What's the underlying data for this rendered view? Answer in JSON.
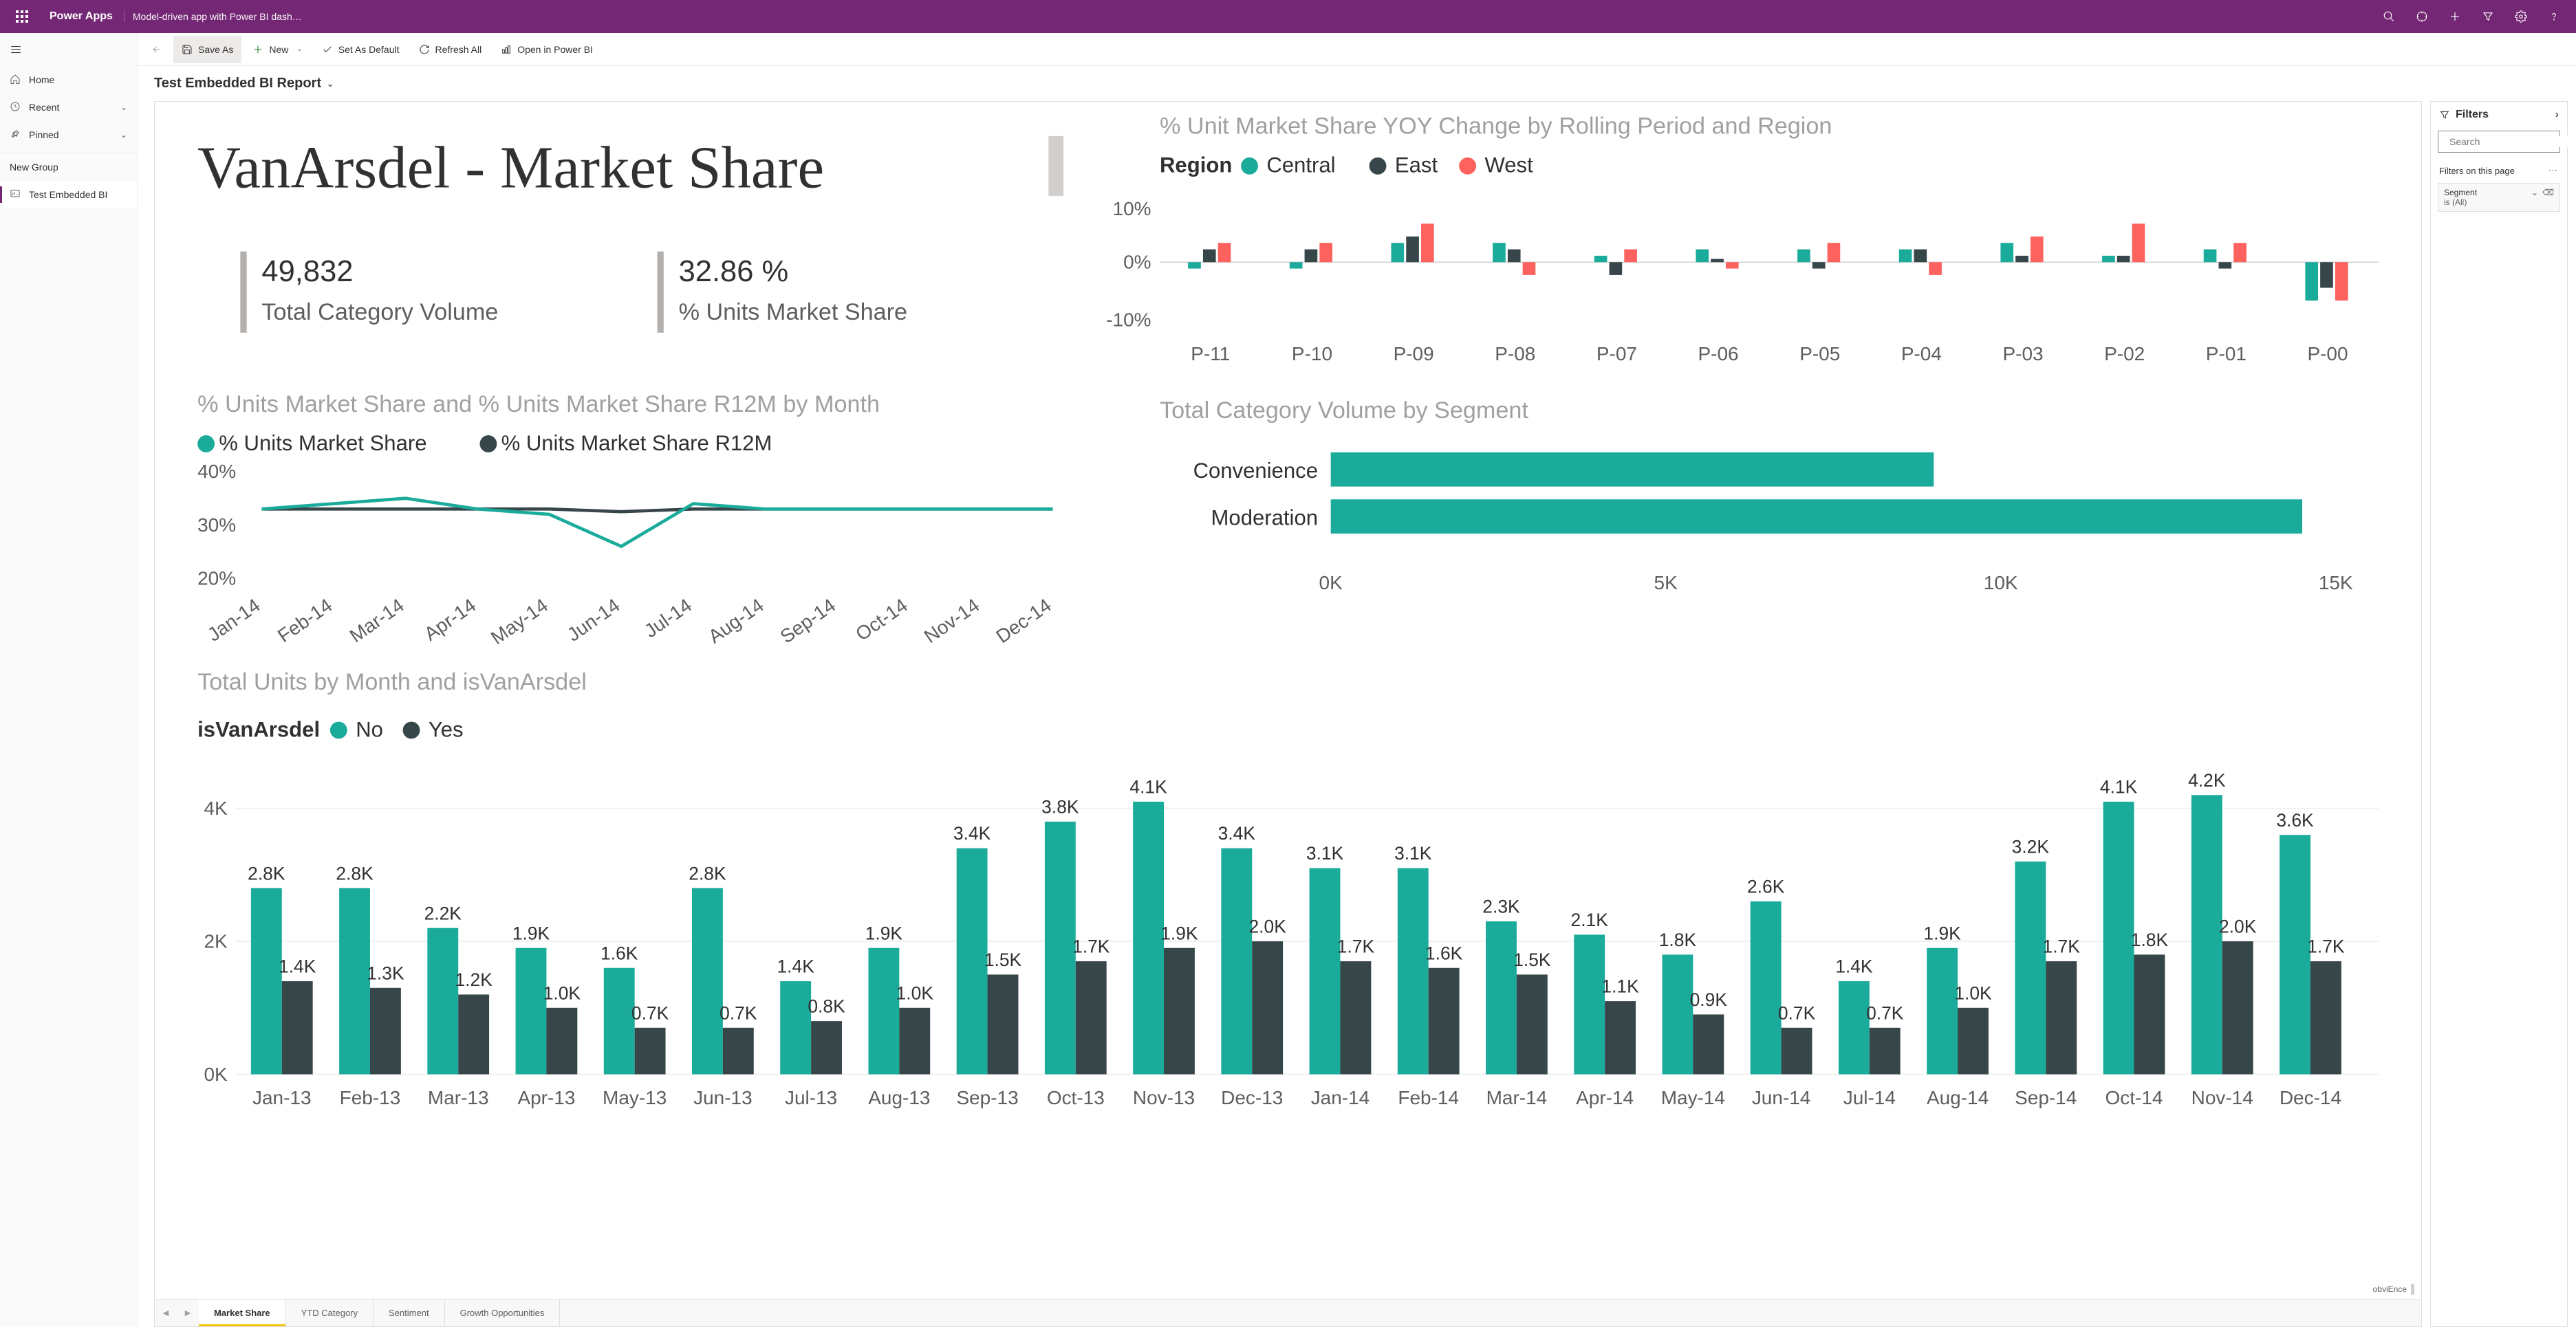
{
  "topnav": {
    "brand": "Power Apps",
    "breadcrumb": "Model-driven app with Power BI dash…"
  },
  "sidebar": {
    "items": [
      {
        "label": "Home",
        "icon": "home"
      },
      {
        "label": "Recent",
        "icon": "clock",
        "chevron": true
      },
      {
        "label": "Pinned",
        "icon": "pin",
        "chevron": true
      }
    ],
    "group": "New Group",
    "active_item": "Test Embedded BI"
  },
  "cmdbar": {
    "save_as": "Save As",
    "new": "New",
    "set_default": "Set As Default",
    "refresh_all": "Refresh All",
    "open_pbi": "Open in Power BI"
  },
  "page_title": "Test Embedded BI Report",
  "filters": {
    "title": "Filters",
    "search_placeholder": "Search",
    "section": "Filters on this page",
    "card_field": "Segment",
    "card_value": "is (All)"
  },
  "tabs": [
    "Market Share",
    "YTD Category",
    "Sentiment",
    "Growth Opportunities"
  ],
  "canvas": {
    "title": "VanArsdel - Market Share",
    "kpi1_val": "49,832",
    "kpi1_lbl": "Total Category Volume",
    "kpi2_val": "32.86 %",
    "kpi2_lbl": "% Units Market Share",
    "yoy": {
      "title": "% Unit Market Share YOY Change by Rolling Period and Region",
      "legend_label": "Region",
      "regions": [
        {
          "name": "Central",
          "color": "#1aab9b"
        },
        {
          "name": "East",
          "color": "#374649"
        },
        {
          "name": "West",
          "color": "#fd625e"
        }
      ],
      "ytick_labels": [
        "10%",
        "0%",
        "-10%"
      ],
      "periods": [
        "P-11",
        "P-10",
        "P-09",
        "P-08",
        "P-07",
        "P-06",
        "P-05",
        "P-04",
        "P-03",
        "P-02",
        "P-01",
        "P-00"
      ],
      "values": [
        [
          -1,
          2,
          3
        ],
        [
          -1,
          2,
          3
        ],
        [
          3,
          4,
          6
        ],
        [
          3,
          2,
          -2
        ],
        [
          1,
          -2,
          2
        ],
        [
          2,
          0.5,
          -1
        ],
        [
          2,
          -1,
          3
        ],
        [
          2,
          2,
          -2
        ],
        [
          3,
          1,
          4
        ],
        [
          1,
          1,
          6
        ],
        [
          2,
          -1,
          3
        ],
        [
          -6,
          -4,
          -6
        ]
      ]
    },
    "line": {
      "title": "% Units Market Share and % Units Market Share R12M by Month",
      "series": [
        {
          "name": "% Units Market Share",
          "color": "#1aab9b"
        },
        {
          "name": "% Units Market Share R12M",
          "color": "#374649"
        }
      ],
      "yticks": [
        "40%",
        "30%",
        "20%"
      ],
      "months": [
        "Jan-14",
        "Feb-14",
        "Mar-14",
        "Apr-14",
        "May-14",
        "Jun-14",
        "Jul-14",
        "Aug-14",
        "Sep-14",
        "Oct-14",
        "Nov-14",
        "Dec-14"
      ],
      "s1": [
        33,
        34,
        35,
        33,
        32,
        26,
        34,
        33,
        33,
        33,
        33,
        33
      ],
      "s2": [
        33,
        33,
        33,
        33,
        33,
        32.5,
        33,
        33,
        33,
        33,
        33,
        33
      ]
    },
    "seg_bar": {
      "title": "Total Category Volume by Segment",
      "color": "#1aab9b",
      "xticks": [
        "0K",
        "5K",
        "10K",
        "15K"
      ],
      "xmax": 15,
      "cats": [
        {
          "name": "Convenience",
          "val": 9
        },
        {
          "name": "Moderation",
          "val": 14.5
        }
      ]
    },
    "cluster": {
      "title": "Total Units by Month and isVanArsdel",
      "legend_label": "isVanArsdel",
      "series": [
        {
          "name": "No",
          "color": "#1aab9b"
        },
        {
          "name": "Yes",
          "color": "#374649"
        }
      ],
      "yticks": [
        "4K",
        "2K",
        "0K"
      ],
      "ymax": 4.5,
      "months": [
        "Jan-13",
        "Feb-13",
        "Mar-13",
        "Apr-13",
        "May-13",
        "Jun-13",
        "Jul-13",
        "Aug-13",
        "Sep-13",
        "Oct-13",
        "Nov-13",
        "Dec-13",
        "Jan-14",
        "Feb-14",
        "Mar-14",
        "Apr-14",
        "May-14",
        "Jun-14",
        "Jul-14",
        "Aug-14",
        "Sep-14",
        "Oct-14",
        "Nov-14",
        "Dec-14"
      ],
      "no_vals": [
        2.8,
        2.8,
        2.2,
        1.9,
        1.6,
        2.8,
        1.4,
        1.9,
        3.4,
        3.8,
        4.1,
        3.4,
        3.1,
        3.1,
        2.3,
        2.1,
        1.8,
        2.6,
        1.4,
        1.9,
        3.2,
        4.1,
        4.2,
        3.6
      ],
      "yes_vals": [
        1.4,
        1.3,
        1.2,
        1.0,
        0.7,
        0.7,
        0.8,
        1.0,
        1.5,
        1.7,
        1.9,
        2.0,
        1.7,
        1.6,
        1.5,
        1.1,
        0.9,
        0.7,
        0.7,
        1.0,
        1.7,
        1.8,
        2.0,
        1.7
      ],
      "no_labels": [
        "2.8K",
        "2.8K",
        "2.2K",
        "1.9K",
        "1.6K",
        "2.8K",
        "1.4K",
        "1.9K",
        "3.4K",
        "3.8K",
        "4.1K",
        "3.4K",
        "3.1K",
        "3.1K",
        "2.3K",
        "2.1K",
        "1.8K",
        "2.6K",
        "1.4K",
        "1.9K",
        "3.2K",
        "4.1K",
        "4.2K",
        "3.6K"
      ],
      "yes_labels": [
        "1.4K",
        "1.3K",
        "1.2K",
        "1.0K",
        "0.7K",
        "0.7K",
        "0.8K",
        "1.0K",
        "1.5K",
        "1.7K",
        "1.9K",
        "2.0K",
        "1.7K",
        "1.6K",
        "1.5K",
        "1.1K",
        "0.9K",
        "0.7K",
        "0.7K",
        "1.0K",
        "1.7K",
        "1.8K",
        "2.0K",
        "1.7K"
      ]
    },
    "watermark": "obviEnce"
  }
}
